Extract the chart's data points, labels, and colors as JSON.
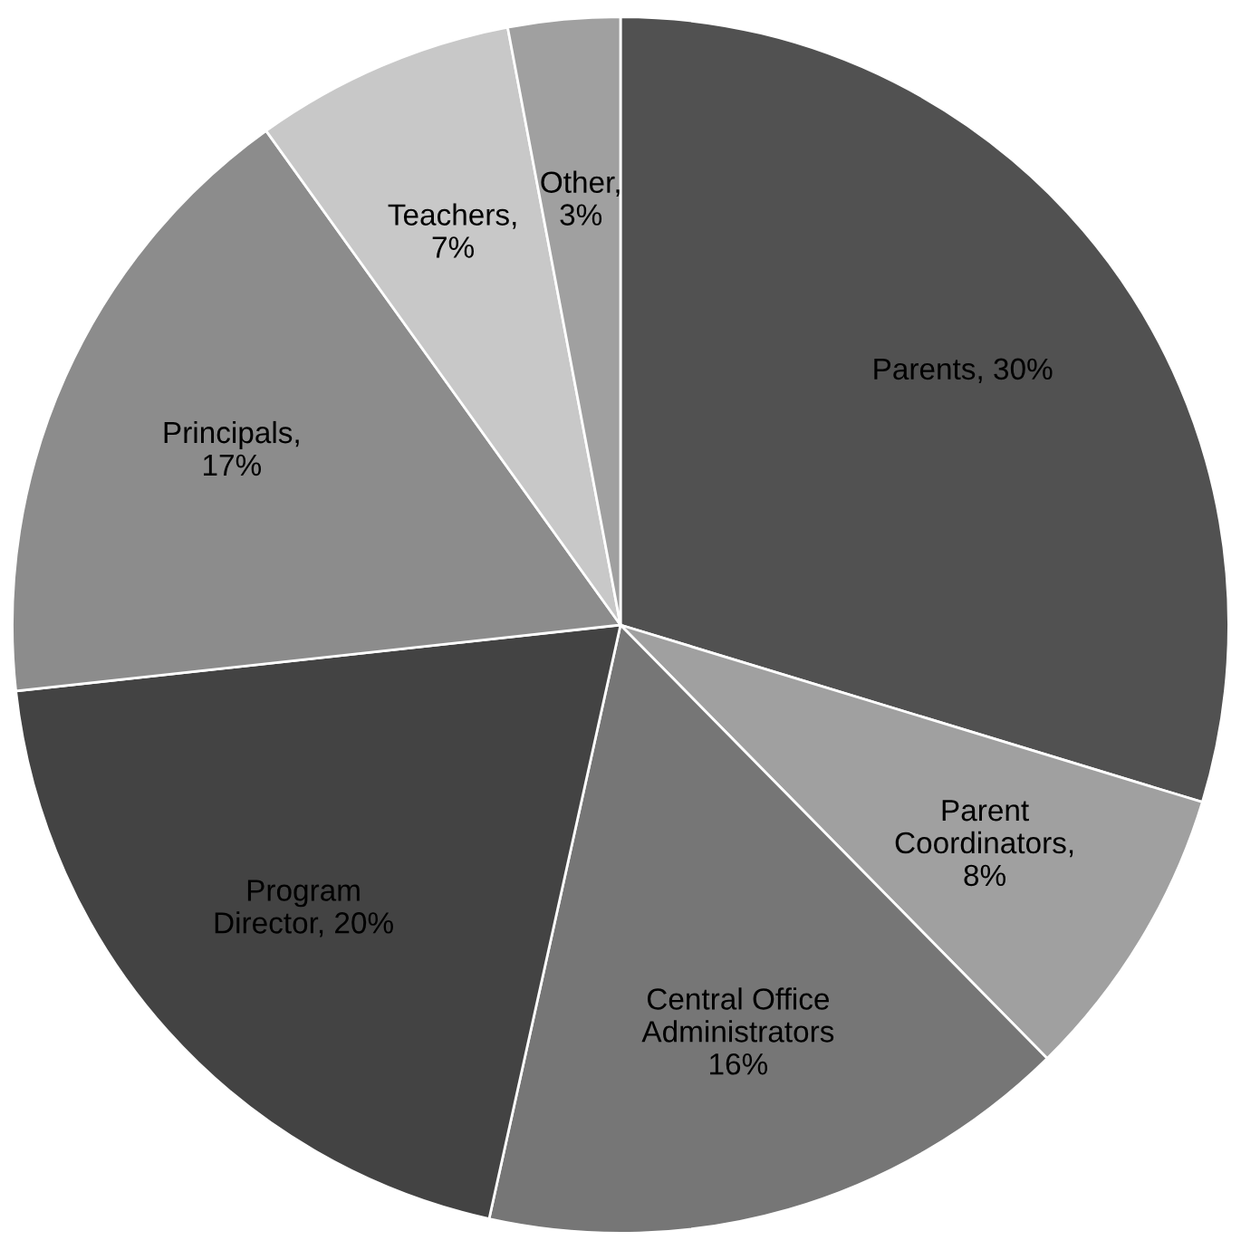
{
  "chart_data": {
    "type": "pie",
    "categories": [
      "Parents, 30%",
      "Parent\nCoordinators,\n8%",
      "Central Office\nAdministrators\n16%",
      "Program\nDirector, 20%",
      "Principals,\n17%",
      "Teachers,\n7%",
      "Other,\n3%"
    ],
    "values": [
      30,
      8,
      16,
      20,
      17,
      7,
      3
    ],
    "colors": [
      "#515151",
      "#a0a0a0",
      "#767676",
      "#434343",
      "#8c8c8c",
      "#c8c8c8",
      "#a0a0a0"
    ]
  }
}
